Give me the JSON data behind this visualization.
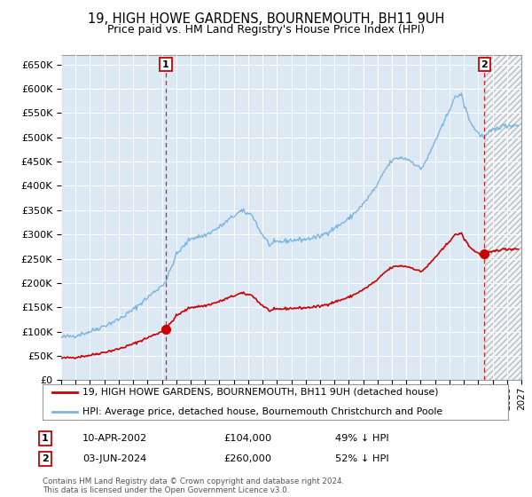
{
  "title": "19, HIGH HOWE GARDENS, BOURNEMOUTH, BH11 9UH",
  "subtitle": "Price paid vs. HM Land Registry's House Price Index (HPI)",
  "ylim": [
    0,
    670000
  ],
  "yticks": [
    0,
    50000,
    100000,
    150000,
    200000,
    250000,
    300000,
    350000,
    400000,
    450000,
    500000,
    550000,
    600000,
    650000
  ],
  "xlim_start": 1995.0,
  "xlim_end": 2027.0,
  "bg_color": "#dce9f5",
  "hpi_color": "#7ab4e0",
  "price_color": "#cc0000",
  "vline_color": "#cc0000",
  "purchase1_date": 2002.27,
  "purchase1_price": 104000,
  "purchase2_date": 2024.42,
  "purchase2_price": 260000,
  "legend_red": "19, HIGH HOWE GARDENS, BOURNEMOUTH, BH11 9UH (detached house)",
  "legend_blue": "HPI: Average price, detached house, Bournemouth Christchurch and Poole",
  "note1_date": "10-APR-2002",
  "note1_price": "£104,000",
  "note1_hpi": "49% ↓ HPI",
  "note2_date": "03-JUN-2024",
  "note2_price": "£260,000",
  "note2_hpi": "52% ↓ HPI",
  "copyright": "Contains HM Land Registry data © Crown copyright and database right 2024.\nThis data is licensed under the Open Government Licence v3.0."
}
